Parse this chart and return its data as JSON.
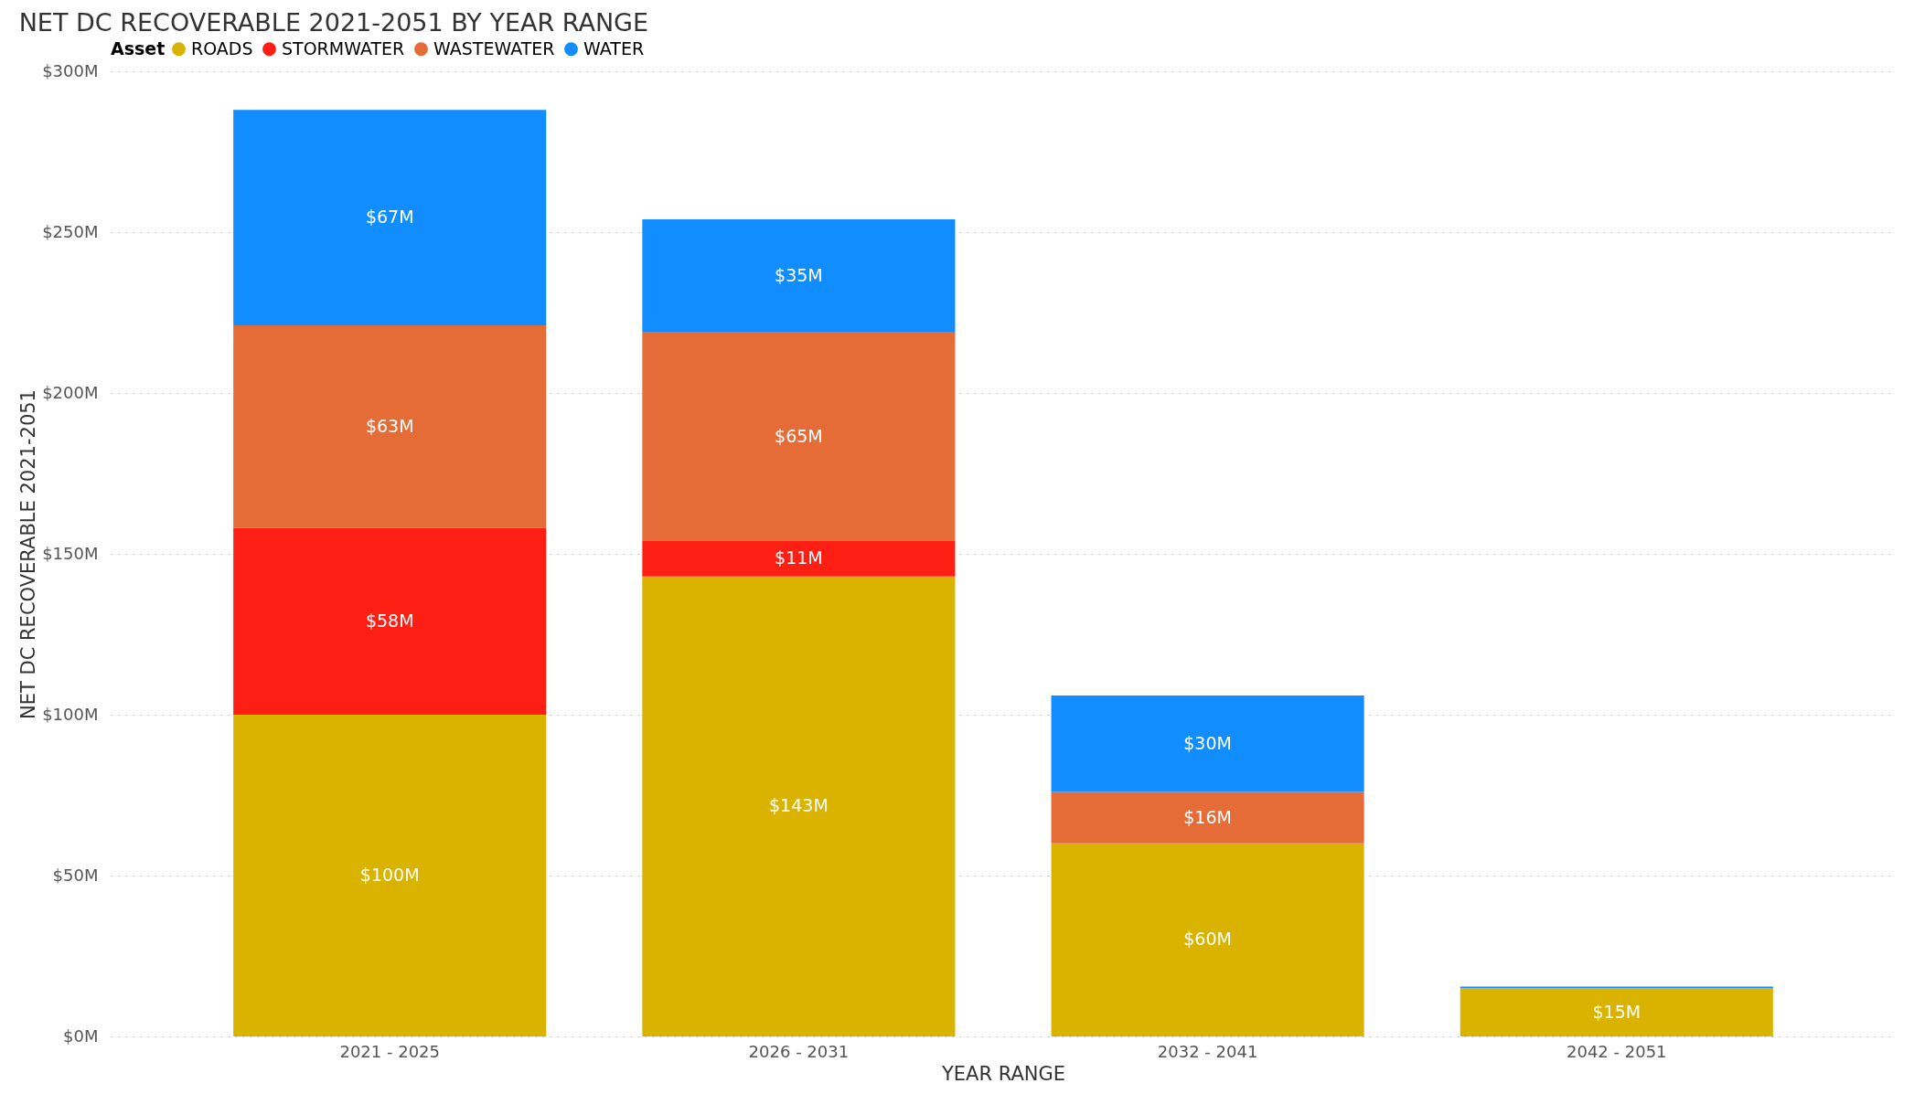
{
  "chart_data": {
    "type": "bar",
    "title": "NET DC RECOVERABLE 2021-2051 BY YEAR RANGE",
    "xlabel": "YEAR RANGE",
    "ylabel": "NET DC RECOVERABLE 2021-2051",
    "legend_title": "Asset",
    "legend": "top left",
    "stacked": true,
    "grid": "y",
    "categories": [
      "2021 - 2025",
      "2026 - 2031",
      "2032 - 2041",
      "2042 - 2051"
    ],
    "series": [
      {
        "name": "ROADS",
        "color": "#d9b300",
        "values": [
          100,
          143,
          60,
          15
        ],
        "value_labels": [
          "$100M",
          "$143M",
          "$60M",
          "$15M"
        ]
      },
      {
        "name": "STORMWATER",
        "color": "#fd1f13",
        "values": [
          58,
          11,
          0,
          0
        ],
        "value_labels": [
          "$58M",
          "$11M",
          null,
          null
        ]
      },
      {
        "name": "WASTEWATER",
        "color": "#e66c37",
        "values": [
          63,
          65,
          16,
          0
        ],
        "value_labels": [
          "$63M",
          "$65M",
          "$16M",
          null
        ]
      },
      {
        "name": "WATER",
        "color": "#118dff",
        "values": [
          67,
          35,
          30,
          0.5
        ],
        "value_labels": [
          "$67M",
          "$35M",
          "$30M",
          null
        ]
      }
    ],
    "ylim": [
      0,
      300
    ],
    "yticks": [
      {
        "value": 0,
        "label": "$0M"
      },
      {
        "value": 50,
        "label": "$50M"
      },
      {
        "value": 100,
        "label": "$100M"
      },
      {
        "value": 150,
        "label": "$150M"
      },
      {
        "value": 200,
        "label": "$200M"
      },
      {
        "value": 250,
        "label": "$250M"
      },
      {
        "value": 300,
        "label": "$300M"
      }
    ]
  }
}
